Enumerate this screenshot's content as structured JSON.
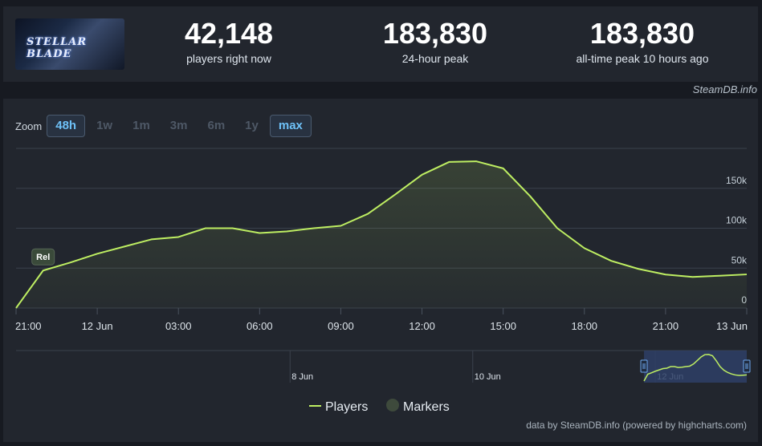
{
  "header": {
    "game_logo_text": "STELLAR BLADE",
    "stats": [
      {
        "value": "42,148",
        "label": "players right now"
      },
      {
        "value": "183,830",
        "label": "24-hour peak"
      },
      {
        "value": "183,830",
        "label": "all-time peak 10 hours ago"
      }
    ],
    "source": "SteamDB.info"
  },
  "zoom": {
    "label": "Zoom",
    "buttons": [
      "48h",
      "1w",
      "1m",
      "3m",
      "6m",
      "1y",
      "max"
    ],
    "active": [
      "48h",
      "max"
    ]
  },
  "chart_data": {
    "type": "area",
    "title": "",
    "xlabel": "",
    "ylabel": "",
    "ylim": [
      0,
      200000
    ],
    "y_ticks": [
      0,
      50000,
      100000,
      150000
    ],
    "y_tick_labels": [
      "0",
      "50k",
      "100k",
      "150k"
    ],
    "x_ticks": [
      "2024-06-11T21:00",
      "2024-06-12T00:00",
      "2024-06-12T03:00",
      "2024-06-12T06:00",
      "2024-06-12T09:00",
      "2024-06-12T12:00",
      "2024-06-12T15:00",
      "2024-06-12T18:00",
      "2024-06-12T21:00",
      "2024-06-13T00:00"
    ],
    "x_tick_labels": [
      "21:00",
      "12 Jun",
      "03:00",
      "06:00",
      "09:00",
      "12:00",
      "15:00",
      "18:00",
      "21:00",
      "13 Jun"
    ],
    "series": [
      {
        "name": "Players",
        "color": "#beee62",
        "x": [
          "2024-06-11T21:00",
          "2024-06-11T22:00",
          "2024-06-11T23:00",
          "2024-06-12T00:00",
          "2024-06-12T01:00",
          "2024-06-12T02:00",
          "2024-06-12T03:00",
          "2024-06-12T04:00",
          "2024-06-12T05:00",
          "2024-06-12T06:00",
          "2024-06-12T07:00",
          "2024-06-12T08:00",
          "2024-06-12T09:00",
          "2024-06-12T10:00",
          "2024-06-12T11:00",
          "2024-06-12T12:00",
          "2024-06-12T13:00",
          "2024-06-12T14:00",
          "2024-06-12T15:00",
          "2024-06-12T16:00",
          "2024-06-12T17:00",
          "2024-06-12T18:00",
          "2024-06-12T19:00",
          "2024-06-12T20:00",
          "2024-06-12T21:00",
          "2024-06-12T22:00",
          "2024-06-12T23:00",
          "2024-06-13T00:00"
        ],
        "values": [
          0,
          47000,
          57000,
          68000,
          77000,
          86000,
          89000,
          100000,
          100000,
          94000,
          96000,
          100000,
          103000,
          118000,
          142000,
          167000,
          183000,
          183830,
          175000,
          140000,
          100000,
          75000,
          59000,
          49000,
          42000,
          39000,
          40500,
          42148
        ]
      }
    ],
    "markers": [
      {
        "name": "Markers",
        "label": "Rel",
        "x": "2024-06-11T22:00",
        "y": 47000,
        "color": "#3a4a3a"
      }
    ],
    "legend": {
      "placement": "bottom-center",
      "items": [
        "Players",
        "Markers"
      ]
    },
    "navigator": {
      "labels": [
        "8 Jun",
        "10 Jun",
        "12 Jun"
      ],
      "label_dates": [
        "2024-06-08",
        "2024-06-10",
        "2024-06-12"
      ],
      "range_start": "2024-06-05",
      "range_end": "2024-06-13",
      "selection": [
        "2024-06-11T21:00",
        "2024-06-13T00:00"
      ]
    },
    "grid": true
  },
  "footer": {
    "attribution": "data by SteamDB.info (powered by highcharts.com)"
  }
}
